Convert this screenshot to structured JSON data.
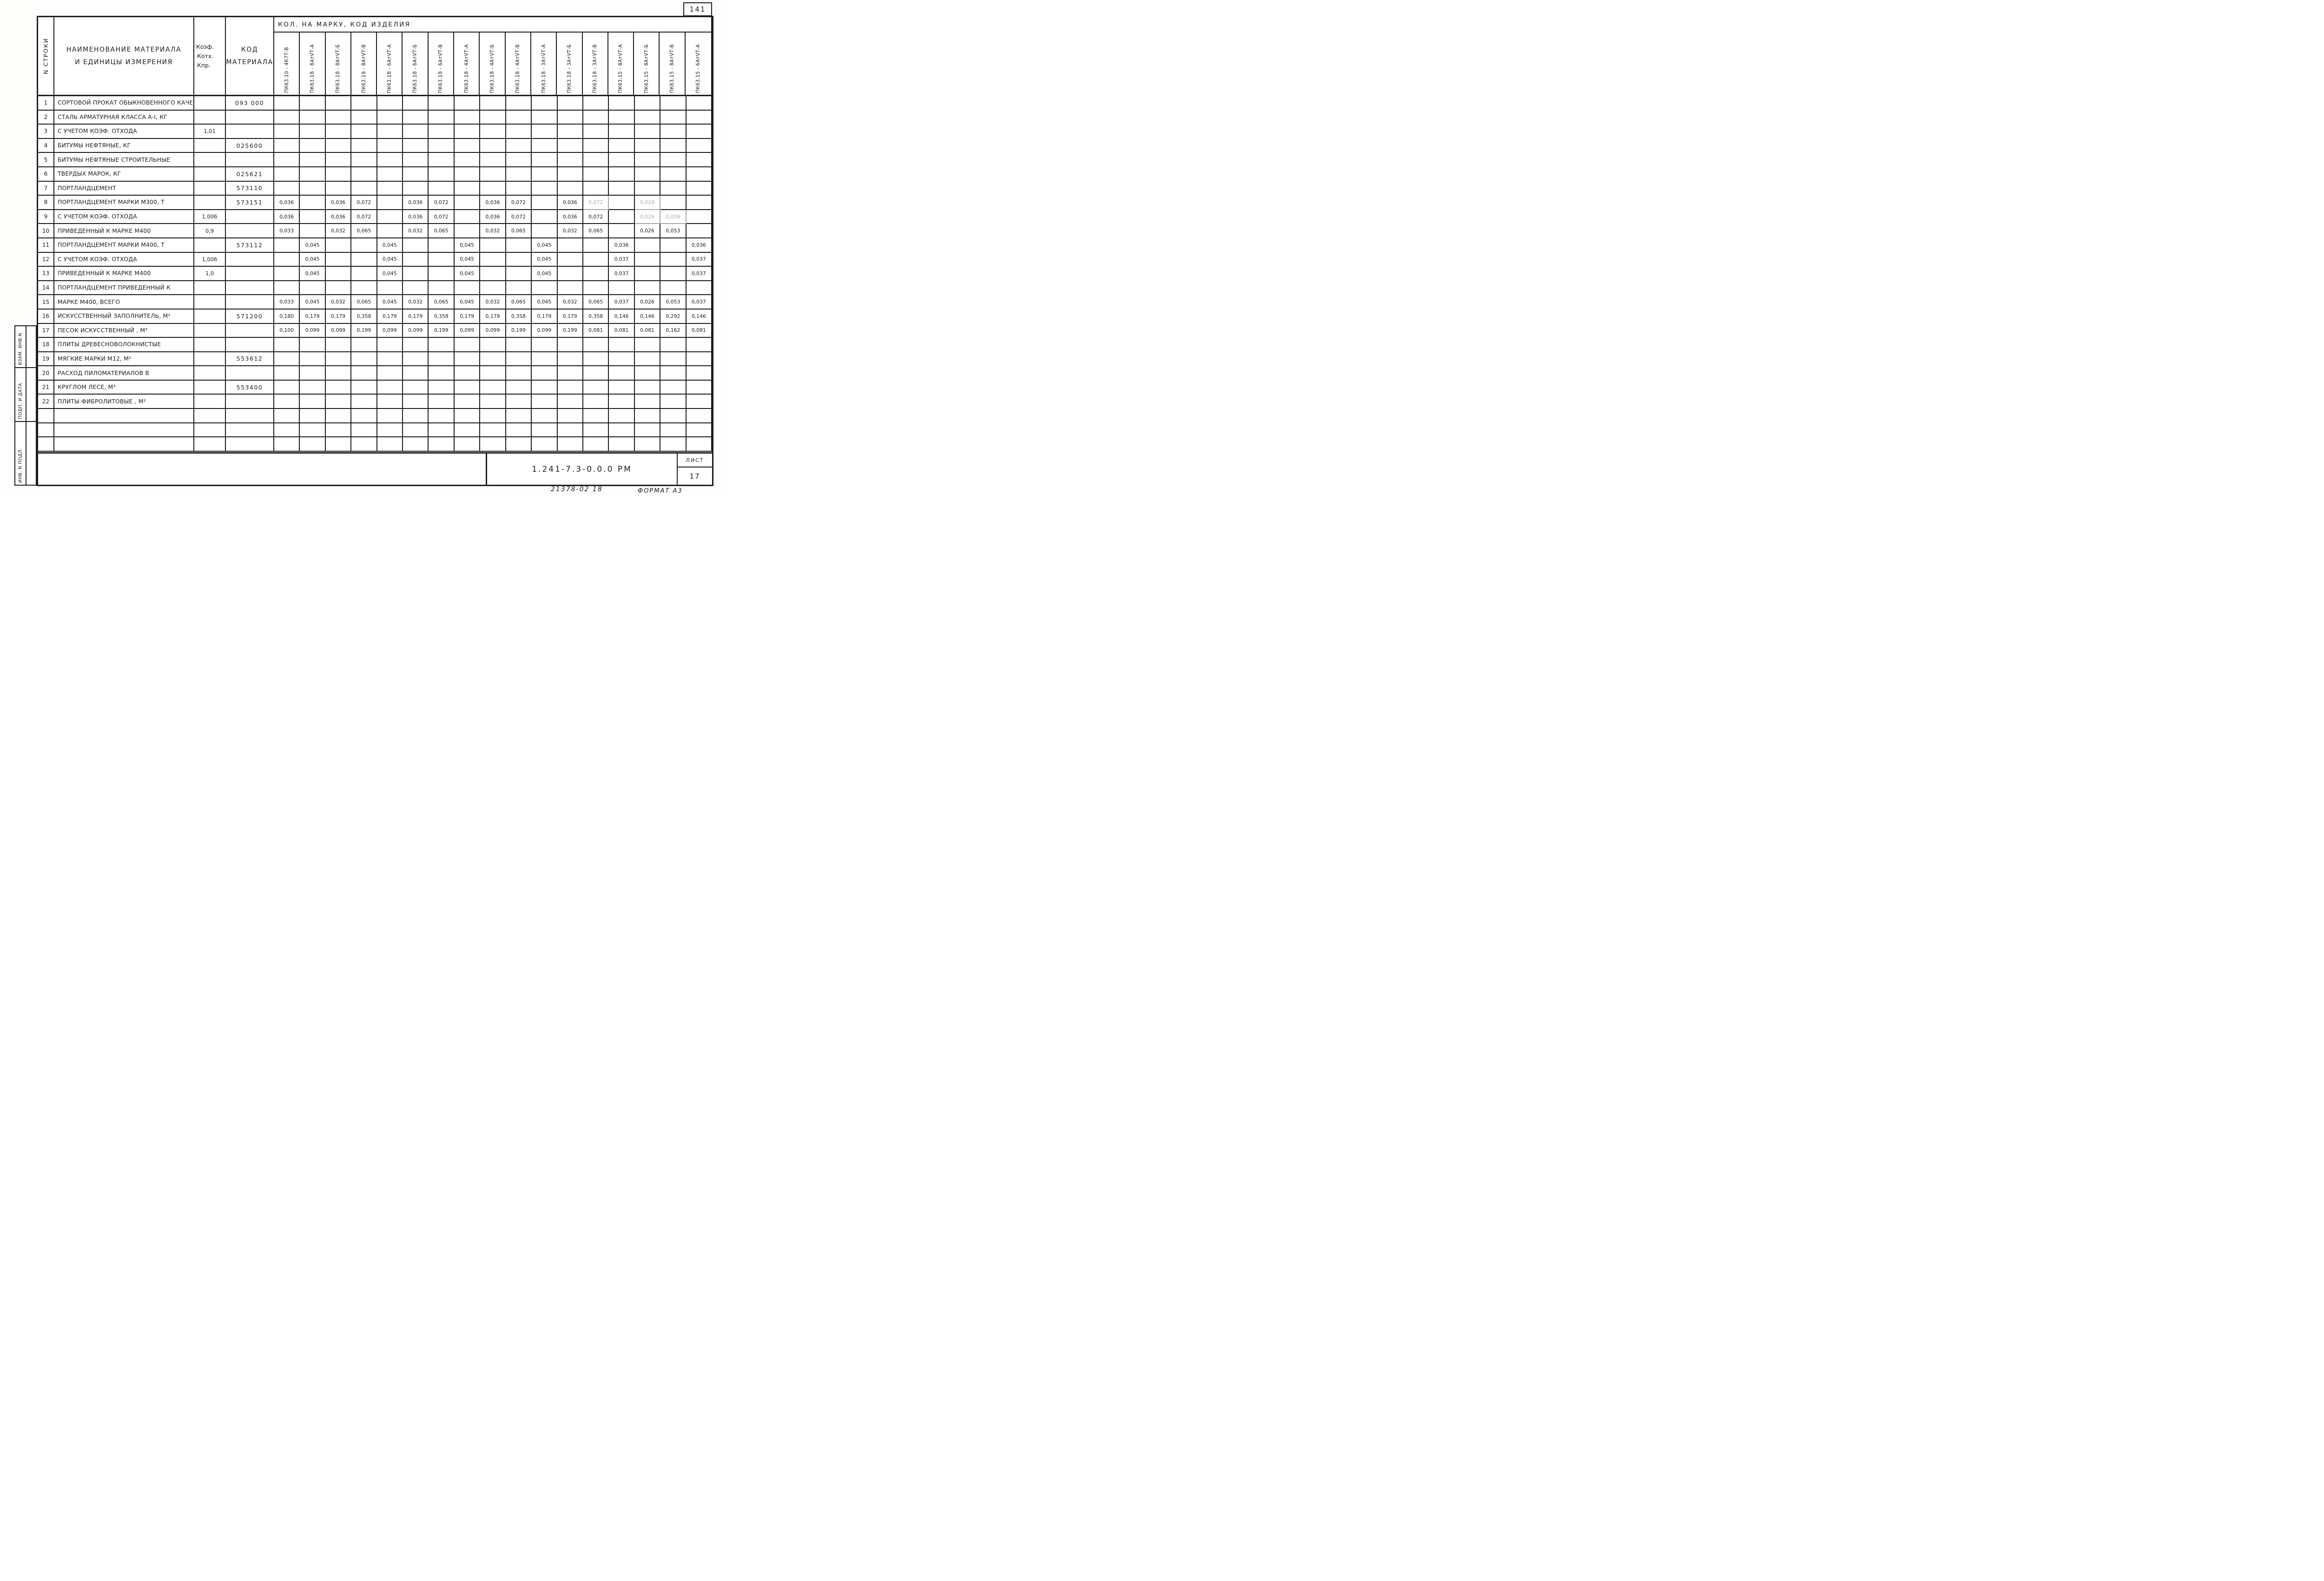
{
  "page": {
    "number": "141",
    "footer_stamp": "21378-02  18",
    "footer_format": "ФОРМАТ  А3"
  },
  "title_block": {
    "doc_code": "1.241-7.3-0.0.0 РМ",
    "sheet_label": "ЛИСТ",
    "sheet_number": "17"
  },
  "sidebar": {
    "labels": [
      "ВЗАМ. ИНВ.N",
      "ПОДП. И ДАТА",
      "ИНВ. N ПОДЛ."
    ]
  },
  "table": {
    "group_title": "КОЛ. НА МАРКУ,  КОД  ИЗДЕЛИЯ",
    "header": {
      "row_col": "N СТРОКИ",
      "name_line1": "НАИМЕНОВАНИЕ  МАТЕРИАЛА",
      "name_line2": "И  ЕДИНИЦЫ  ИЗМЕРЕНИЯ",
      "coef_lines": [
        "Коэф.",
        "Котх.",
        "Кпр."
      ],
      "code_line1": "КОД",
      "code_line2": "МАТЕРИАЛА"
    },
    "product_columns": [
      "ПК63.10 - 4К7Т-В",
      "ПК63.18 - 8АтVТ-А",
      "ПК63.18 - 8АтVТ-Б",
      "ПК63.18 - 8АтVТ-В",
      "ПК63.18 - 6АтVТ-А",
      "ПК63.18 - 6АтVТ-Б",
      "ПК63.18 - 6АтVТ-В",
      "ПК63.18 - 4АтVТ-А",
      "ПК63.18 - 4АтVТ-Б",
      "ПК63.18 - 4АтVТ-В",
      "ПК63.18 - 3АтVТ-А",
      "ПК63.18 - 3АтVТ-Б",
      "ПК63.18 - 3АтVТ-В",
      "ПК63.15 - 8АтVТ-А",
      "ПК63.15 - 8АтVТ-Б",
      "ПК63.15 - 8АтVТ-В",
      "ПК63.15 - 6АтVТ-А"
    ],
    "rows": [
      {
        "num": "1",
        "name": "СОРТОВОЙ ПРОКАТ ОБЫКНОВЕННОГО КАЧЕСТВА",
        "coef": "",
        "code": "093 000",
        "values": []
      },
      {
        "num": "2",
        "name": "СТАЛЬ  АРМАТУРНАЯ  КЛАССА  А-I, КГ",
        "coef": "",
        "code": "",
        "values": []
      },
      {
        "num": "3",
        "name": "С УЧЕТОМ  КОЭФ.  ОТХОДА",
        "coef": "1,01",
        "code": "",
        "values": []
      },
      {
        "num": "4",
        "name": "БИТУМЫ  НЕФТЯНЫЕ, КГ",
        "coef": "",
        "code": "025600",
        "values": []
      },
      {
        "num": "5",
        "name": "БИТУМЫ НЕФТЯНЫЕ СТРОИТЕЛЬНЫЕ",
        "coef": "",
        "code": "",
        "values": []
      },
      {
        "num": "6",
        "name": "ТВЕРДЫХ  МАРОК, КГ",
        "coef": "",
        "code": "025621",
        "values": []
      },
      {
        "num": "7",
        "name": "ПОРТЛАНДЦЕМЕНТ",
        "coef": "",
        "code": "573110",
        "values": []
      },
      {
        "num": "8",
        "name": "ПОРТЛАНДЦЕМЕНТ  МАРКИ  М300, Т",
        "coef": "",
        "code": "573151",
        "values": [
          "0,036",
          "",
          "0,036",
          "0,072",
          "",
          "0,036",
          "0,072",
          "",
          "0,036",
          "0,072",
          "",
          "0,036",
          "0,072",
          "",
          "0,029",
          "",
          ""
        ]
      },
      {
        "num": "9",
        "name": "С УЧЕТОМ  КОЭФ.  ОТХОДА",
        "coef": "1,006",
        "code": "",
        "values": [
          "0,036",
          "",
          "0,036",
          "0,072",
          "",
          "0,036",
          "0,072",
          "",
          "0,036",
          "0,072",
          "",
          "0,036",
          "0,072",
          "",
          "0,029",
          "0,059",
          ""
        ]
      },
      {
        "num": "10",
        "name": "ПРИВЕДЕННЫЙ  К  МАРКЕ  М400",
        "coef": "0,9",
        "code": "",
        "values": [
          "0,033",
          "",
          "0,032",
          "0,065",
          "",
          "0,032",
          "0,065",
          "",
          "0,032",
          "0,065",
          "",
          "0,032",
          "0,065",
          "",
          "0,026",
          "0,053",
          ""
        ]
      },
      {
        "num": "11",
        "name": "ПОРТЛАНДЦЕМЕНТ  МАРКИ  М400, Т",
        "coef": "",
        "code": "573112",
        "values": [
          "",
          "0,045",
          "",
          "",
          "0,045",
          "",
          "",
          "0,045",
          "",
          "",
          "0,045",
          "",
          "",
          "0,036",
          "",
          "",
          "0,036"
        ]
      },
      {
        "num": "12",
        "name": "С УЧЕТОМ  КОЭФ.  ОТХОДА",
        "coef": "1,006",
        "code": "",
        "values": [
          "",
          "0,045",
          "",
          "",
          "0,045",
          "",
          "",
          "0,045",
          "",
          "",
          "0,045",
          "",
          "",
          "0,037",
          "",
          "",
          "0,037"
        ]
      },
      {
        "num": "13",
        "name": "ПРИВЕДЕННЫЙ  К  МАРКЕ  М400",
        "coef": "1,0",
        "code": "",
        "values": [
          "",
          "0,045",
          "",
          "",
          "0,045",
          "",
          "",
          "0,045",
          "",
          "",
          "0,045",
          "",
          "",
          "0,037",
          "",
          "",
          "0,037"
        ]
      },
      {
        "num": "14",
        "name": "ПОРТЛАНДЦЕМЕНТ  ПРИВЕДЕННЫЙ  К",
        "coef": "",
        "code": "",
        "values": []
      },
      {
        "num": "15",
        "name": "МАРКЕ  М400, ВСЕГО",
        "coef": "",
        "code": "",
        "values": [
          "0,033",
          "0,045",
          "0,032",
          "0,065",
          "0,045",
          "0,032",
          "0,065",
          "0,045",
          "0,032",
          "0,065",
          "0,045",
          "0,032",
          "0,065",
          "0,037",
          "0,026",
          "0,053",
          "0,037"
        ]
      },
      {
        "num": "16",
        "name": "ИСКУССТВЕННЫЙ  ЗАПОЛНИТЕЛЬ, М³",
        "coef": "",
        "code": "571200",
        "values": [
          "0,180",
          "0,179",
          "0,179",
          "0,358",
          "0,179",
          "0,179",
          "0,358",
          "0,179",
          "0,179",
          "0,358",
          "0,179",
          "0,179",
          "0,358",
          "0,146",
          "0,146",
          "0,292",
          "0,146"
        ]
      },
      {
        "num": "17",
        "name": "ПЕСОК  ИСКУССТВЕННЫЙ , М³",
        "coef": "",
        "code": "",
        "values": [
          "0,100",
          "0,099",
          "0,099",
          "0,199",
          "0,099",
          "0,099",
          "0,199",
          "0,099",
          "0,099",
          "0,199",
          "0,099",
          "0,199",
          "0,081",
          "0,081",
          "0,081",
          "0,162",
          "0,081"
        ]
      },
      {
        "num": "18",
        "name": "ПЛИТЫ  ДРЕВЕСНОВОЛОКНИСТЫЕ",
        "coef": "",
        "code": "",
        "values": []
      },
      {
        "num": "19",
        "name": "МЯГКИЕ  МАРКИ  М12, М²",
        "coef": "",
        "code": "553612",
        "values": []
      },
      {
        "num": "20",
        "name": "РАСХОД  ПИЛОМАТЕРИАЛОВ  В",
        "coef": "",
        "code": "",
        "values": []
      },
      {
        "num": "21",
        "name": "КРУГЛОМ  ЛЕСЕ,  М³",
        "coef": "",
        "code": "553400",
        "values": []
      },
      {
        "num": "22",
        "name": "ПЛИТЫ  ФИБРОЛИТОВЫЕ ,  М²",
        "coef": "",
        "code": "",
        "values": []
      }
    ],
    "faded_cells": [
      [
        8,
        13
      ],
      [
        8,
        15
      ],
      [
        9,
        15
      ],
      [
        9,
        16
      ]
    ],
    "blank_rows": 3
  }
}
